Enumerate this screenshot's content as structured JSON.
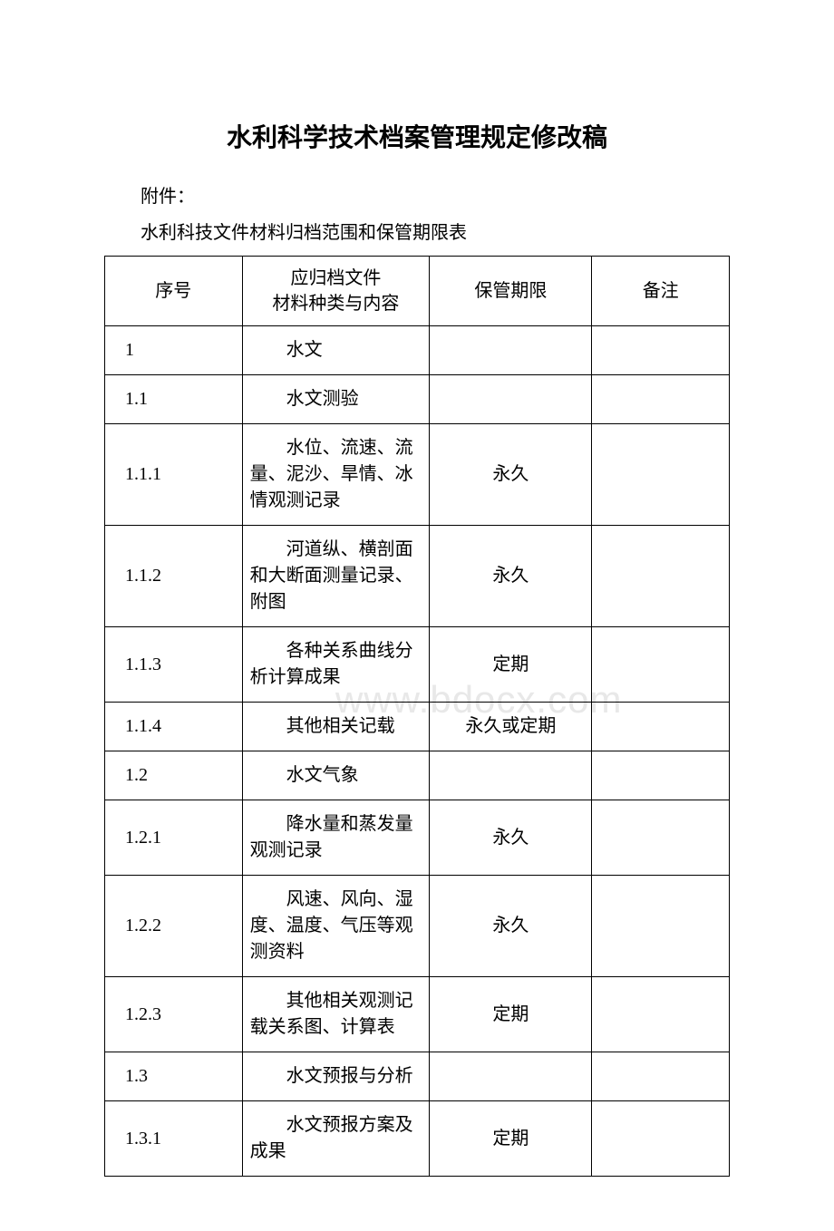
{
  "title": "水利科学技术档案管理规定修改稿",
  "pre_lines": [
    "附件：",
    "水利科技文件材料归档范围和保管期限表"
  ],
  "watermark": "www.bdocx.com",
  "headers": {
    "num": "序号",
    "content_line1": "应归档文件",
    "content_line2": "材料种类与内容",
    "period": "保管期限",
    "note": "备注"
  },
  "rows": [
    {
      "num": "1",
      "content": "水文",
      "indent": true,
      "period": "",
      "note": ""
    },
    {
      "num": "1.1",
      "content": "水文测验",
      "indent": true,
      "period": "",
      "note": ""
    },
    {
      "num": "1.1.1",
      "content": "水位、流速、流量、泥沙、旱情、冰情观测记录",
      "indent": true,
      "period": "永久",
      "note": ""
    },
    {
      "num": "1.1.2",
      "content": "河道纵、横剖面和大断面测量记录、附图",
      "indent": true,
      "period": "永久",
      "note": ""
    },
    {
      "num": "1.1.3",
      "content": "各种关系曲线分析计算成果",
      "indent": true,
      "period": "定期",
      "note": ""
    },
    {
      "num": "1.1.4",
      "content": "其他相关记载",
      "indent": true,
      "period": "永久或定期",
      "note": ""
    },
    {
      "num": "1.2",
      "content": "水文气象",
      "indent": true,
      "period": "",
      "note": ""
    },
    {
      "num": "1.2.1",
      "content": "降水量和蒸发量观测记录",
      "indent": true,
      "period": "永久",
      "note": ""
    },
    {
      "num": "1.2.2",
      "content": "风速、风向、湿度、温度、气压等观测资料",
      "indent": true,
      "period": "永久",
      "note": ""
    },
    {
      "num": "1.2.3",
      "content": "其他相关观测记载关系图、计算表",
      "indent": true,
      "period": "定期",
      "note": ""
    },
    {
      "num": "1.3",
      "content": "水文预报与分析",
      "indent": true,
      "period": "",
      "note": ""
    },
    {
      "num": "1.3.1",
      "content": "水文预报方案及成果",
      "indent": true,
      "period": "定期",
      "note": ""
    }
  ],
  "colors": {
    "background": "#ffffff",
    "text": "#000000",
    "border": "#000000",
    "watermark": "#e8e8e8"
  }
}
